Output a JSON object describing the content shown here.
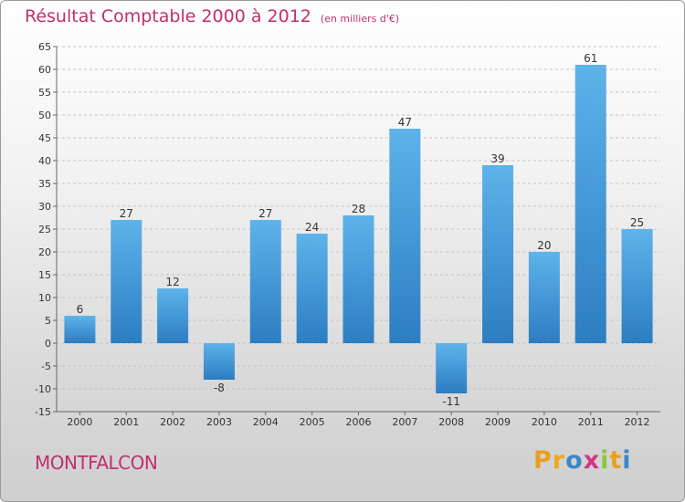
{
  "chart_data": {
    "type": "bar",
    "title": "Résultat Comptable 2000 à 2012",
    "unit_label": "(en milliers d'€)",
    "categories": [
      "2000",
      "2001",
      "2002",
      "2003",
      "2004",
      "2005",
      "2006",
      "2007",
      "2008",
      "2009",
      "2010",
      "2011",
      "2012"
    ],
    "values": [
      6,
      27,
      12,
      -8,
      27,
      24,
      28,
      47,
      -11,
      39,
      20,
      61,
      25
    ],
    "ylim": [
      -15,
      65
    ],
    "yticks": [
      -15,
      -10,
      -5,
      0,
      5,
      10,
      15,
      20,
      25,
      30,
      35,
      40,
      45,
      50,
      55,
      60,
      65
    ],
    "grid": true,
    "xlabel": "",
    "ylabel": ""
  },
  "footer": {
    "place_name": "MONTFALCON",
    "brand_letters": [
      "P",
      "r",
      "o",
      "x",
      "i",
      "t",
      "i"
    ]
  },
  "colors": {
    "title": "#c0306e",
    "bar_light": "#5eb3ea",
    "bar_dark": "#2c7dc2",
    "brand": [
      "#e9a020",
      "#f0a81e",
      "#3a88cc",
      "#d03880",
      "#8cc63f",
      "#e9a020",
      "#3a88cc"
    ]
  }
}
